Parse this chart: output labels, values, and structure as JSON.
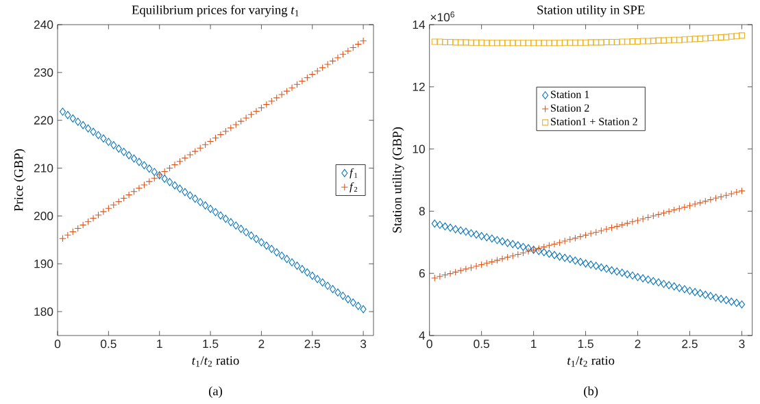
{
  "chart_data": [
    {
      "type": "scatter",
      "title": "Equilibrium prices for varying *t*$_{1}$",
      "xlabel": "*t*$_{1}$/*t*$_{2}$ ratio",
      "ylabel": "Price (GBP)",
      "x": [
        0.05,
        0.1,
        0.15,
        0.2,
        0.25,
        0.3,
        0.35,
        0.4,
        0.45,
        0.5,
        0.55,
        0.6,
        0.65,
        0.7,
        0.75,
        0.8,
        0.85,
        0.9,
        0.95,
        1.0,
        1.05,
        1.1,
        1.15,
        1.2,
        1.25,
        1.3,
        1.35,
        1.4,
        1.45,
        1.5,
        1.55,
        1.6,
        1.65,
        1.7,
        1.75,
        1.8,
        1.85,
        1.9,
        1.95,
        2.0,
        2.05,
        2.1,
        2.15,
        2.2,
        2.25,
        2.3,
        2.35,
        2.4,
        2.45,
        2.5,
        2.55,
        2.6,
        2.65,
        2.7,
        2.75,
        2.8,
        2.85,
        2.9,
        2.95,
        3.0
      ],
      "series": [
        {
          "name": "*f*$_{1}$",
          "color": "#0072bd",
          "marker": "diamond",
          "values": [
            221.8,
            221.1,
            220.4,
            219.7,
            219.0,
            218.3,
            217.6,
            216.9,
            216.2,
            215.5,
            214.8,
            214.1,
            213.4,
            212.7,
            212.0,
            211.3,
            210.6,
            209.9,
            209.2,
            208.5,
            207.8,
            207.1,
            206.4,
            205.7,
            205.0,
            204.3,
            203.6,
            202.9,
            202.2,
            201.5,
            200.8,
            200.1,
            199.4,
            198.7,
            198.0,
            197.3,
            196.6,
            195.9,
            195.2,
            194.5,
            193.8,
            193.1,
            192.4,
            191.7,
            191.0,
            190.3,
            189.6,
            188.9,
            188.2,
            187.5,
            186.8,
            186.1,
            185.4,
            184.7,
            184.0,
            183.3,
            182.6,
            181.9,
            181.2,
            180.5
          ]
        },
        {
          "name": "*f*$_{2}$",
          "color": "#d95319",
          "marker": "cross",
          "values": [
            195.3,
            196.0,
            196.7,
            197.4,
            198.1,
            198.8,
            199.5,
            200.2,
            200.9,
            201.6,
            202.3,
            203.0,
            203.7,
            204.4,
            205.1,
            205.8,
            206.5,
            207.2,
            207.9,
            208.6,
            209.3,
            210.0,
            210.7,
            211.4,
            212.1,
            212.8,
            213.5,
            214.2,
            214.9,
            215.6,
            216.3,
            217.0,
            217.7,
            218.4,
            219.1,
            219.8,
            220.5,
            221.2,
            221.9,
            222.6,
            223.3,
            224.0,
            224.7,
            225.4,
            226.1,
            226.8,
            227.5,
            228.2,
            228.9,
            229.6,
            230.3,
            231.0,
            231.7,
            232.4,
            233.1,
            233.8,
            234.5,
            235.2,
            235.9,
            236.6
          ]
        }
      ],
      "xlim": [
        0,
        3.1
      ],
      "ylim": [
        175,
        240
      ],
      "xticks": [
        0,
        0.5,
        1,
        1.5,
        2,
        2.5,
        3
      ],
      "yticks": [
        180,
        190,
        200,
        210,
        220,
        230,
        240
      ],
      "legend": "right",
      "grid": false,
      "annotations": [
        "(a)"
      ]
    },
    {
      "type": "scatter",
      "title": "Station utility in SPE",
      "xlabel": "*t*$_{1}$/*t*$_{2}$ ratio",
      "ylabel": "Station utility (GBP)",
      "x": [
        0.05,
        0.1,
        0.15,
        0.2,
        0.25,
        0.3,
        0.35,
        0.4,
        0.45,
        0.5,
        0.55,
        0.6,
        0.65,
        0.7,
        0.75,
        0.8,
        0.85,
        0.9,
        0.95,
        1.0,
        1.05,
        1.1,
        1.15,
        1.2,
        1.25,
        1.3,
        1.35,
        1.4,
        1.45,
        1.5,
        1.55,
        1.6,
        1.65,
        1.7,
        1.75,
        1.8,
        1.85,
        1.9,
        1.95,
        2.0,
        2.05,
        2.1,
        2.15,
        2.2,
        2.25,
        2.3,
        2.35,
        2.4,
        2.45,
        2.5,
        2.55,
        2.6,
        2.65,
        2.7,
        2.75,
        2.8,
        2.85,
        2.9,
        2.95,
        3.0
      ],
      "series": [
        {
          "name": "Station 1",
          "color": "#0072bd",
          "marker": "diamond",
          "values": [
            7.6,
            7.56,
            7.51,
            7.47,
            7.42,
            7.38,
            7.34,
            7.29,
            7.25,
            7.2,
            7.16,
            7.12,
            7.07,
            7.03,
            6.98,
            6.94,
            6.9,
            6.85,
            6.81,
            6.76,
            6.72,
            6.68,
            6.63,
            6.59,
            6.54,
            6.5,
            6.46,
            6.41,
            6.37,
            6.32,
            6.28,
            6.24,
            6.19,
            6.15,
            6.1,
            6.06,
            6.02,
            5.97,
            5.93,
            5.88,
            5.84,
            5.8,
            5.75,
            5.71,
            5.66,
            5.62,
            5.58,
            5.53,
            5.49,
            5.44,
            5.4,
            5.36,
            5.31,
            5.27,
            5.22,
            5.18,
            5.14,
            5.09,
            5.05,
            5.0
          ]
        },
        {
          "name": "Station 2",
          "color": "#d95319",
          "marker": "cross",
          "values": [
            5.85,
            5.9,
            5.95,
            5.99,
            6.04,
            6.09,
            6.14,
            6.18,
            6.23,
            6.28,
            6.33,
            6.37,
            6.42,
            6.47,
            6.52,
            6.56,
            6.61,
            6.66,
            6.71,
            6.75,
            6.8,
            6.85,
            6.9,
            6.94,
            6.99,
            7.04,
            7.09,
            7.13,
            7.18,
            7.23,
            7.28,
            7.32,
            7.37,
            7.42,
            7.47,
            7.51,
            7.56,
            7.61,
            7.66,
            7.7,
            7.75,
            7.8,
            7.85,
            7.89,
            7.94,
            7.99,
            8.04,
            8.08,
            8.13,
            8.18,
            8.23,
            8.27,
            8.32,
            8.37,
            8.42,
            8.46,
            8.51,
            8.56,
            8.61,
            8.65
          ]
        },
        {
          "name": "Station1 + Station 2",
          "color": "#edb120",
          "marker": "square",
          "values": [
            13.45,
            13.45,
            13.44,
            13.44,
            13.43,
            13.43,
            13.43,
            13.42,
            13.42,
            13.42,
            13.41,
            13.41,
            13.41,
            13.41,
            13.41,
            13.41,
            13.41,
            13.41,
            13.41,
            13.41,
            13.41,
            13.41,
            13.41,
            13.41,
            13.41,
            13.42,
            13.42,
            13.42,
            13.42,
            13.42,
            13.43,
            13.43,
            13.43,
            13.44,
            13.44,
            13.44,
            13.45,
            13.45,
            13.46,
            13.46,
            13.47,
            13.47,
            13.48,
            13.49,
            13.49,
            13.5,
            13.51,
            13.51,
            13.52,
            13.53,
            13.54,
            13.55,
            13.56,
            13.57,
            13.58,
            13.59,
            13.6,
            13.62,
            13.63,
            13.65
          ]
        }
      ],
      "xlim": [
        0,
        3.1
      ],
      "ylim": [
        4,
        14
      ],
      "xticks": [
        0,
        0.5,
        1,
        1.5,
        2,
        2.5,
        3
      ],
      "yticks": [
        4,
        6,
        8,
        10,
        12,
        14
      ],
      "legend": "top",
      "grid": false,
      "annotations": [
        "×10$^{6}$",
        "(b)"
      ]
    }
  ]
}
